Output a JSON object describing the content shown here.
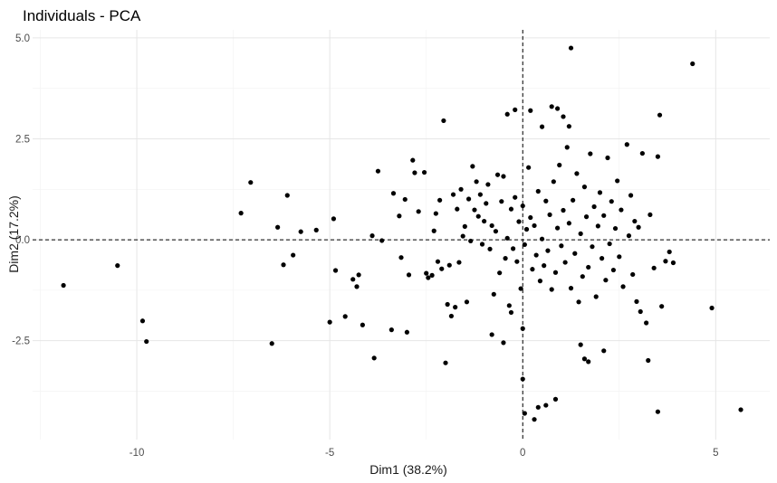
{
  "chart_data": {
    "type": "scatter",
    "title": "Individuals - PCA",
    "xlabel": "Dim1 (38.2%)",
    "ylabel": "Dim2 (17.2%)",
    "xlim": [
      -12.7,
      6.4
    ],
    "ylim": [
      -4.95,
      5.2
    ],
    "x_ticks": [
      -10,
      -5,
      0,
      5
    ],
    "x_tick_labels": [
      "-10",
      "-5",
      "0",
      "5"
    ],
    "y_ticks": [
      -2.5,
      0.0,
      2.5,
      5.0
    ],
    "y_tick_labels": [
      "-2.5",
      "0.0",
      "2.5",
      "5.0"
    ],
    "x_minor_ticks": [
      -12.5,
      -7.5,
      -2.5,
      2.5
    ],
    "y_minor_ticks": [
      -3.75,
      -1.25,
      1.25,
      3.75
    ],
    "grid": true,
    "reference_lines": {
      "x": 0,
      "y": 0,
      "style": "dashed"
    },
    "point_color": "#000000",
    "points": [
      [
        -11.9,
        -1.13
      ],
      [
        -10.5,
        -0.64
      ],
      [
        -9.85,
        -2.01
      ],
      [
        -9.75,
        -2.52
      ],
      [
        -7.3,
        0.66
      ],
      [
        -7.05,
        1.42
      ],
      [
        -6.5,
        -2.57
      ],
      [
        -6.35,
        0.31
      ],
      [
        -6.2,
        -0.62
      ],
      [
        -6.1,
        1.1
      ],
      [
        -5.95,
        -0.38
      ],
      [
        -5.75,
        0.2
      ],
      [
        -5.35,
        0.24
      ],
      [
        -5.0,
        -2.04
      ],
      [
        -4.9,
        0.52
      ],
      [
        -4.85,
        -0.76
      ],
      [
        -4.6,
        -1.9
      ],
      [
        -4.4,
        -0.98
      ],
      [
        -4.3,
        -1.16
      ],
      [
        -4.25,
        -0.87
      ],
      [
        -4.15,
        -2.11
      ],
      [
        -3.9,
        0.1
      ],
      [
        -3.85,
        -2.93
      ],
      [
        -3.75,
        1.7
      ],
      [
        -3.65,
        -0.02
      ],
      [
        -3.4,
        -2.23
      ],
      [
        -3.35,
        1.15
      ],
      [
        -3.2,
        0.59
      ],
      [
        -3.15,
        -0.44
      ],
      [
        -3.05,
        1.0
      ],
      [
        -3.0,
        -2.29
      ],
      [
        -2.95,
        -0.87
      ],
      [
        -2.85,
        1.97
      ],
      [
        -2.8,
        1.66
      ],
      [
        -2.7,
        0.7
      ],
      [
        -2.55,
        1.67
      ],
      [
        -2.5,
        -0.83
      ],
      [
        -2.45,
        -0.94
      ],
      [
        -2.35,
        -0.88
      ],
      [
        -2.3,
        0.22
      ],
      [
        -2.25,
        0.65
      ],
      [
        -2.2,
        -0.54
      ],
      [
        -2.15,
        0.98
      ],
      [
        -2.1,
        -0.72
      ],
      [
        -2.05,
        2.95
      ],
      [
        -2.0,
        -3.05
      ],
      [
        -1.95,
        -1.6
      ],
      [
        -1.9,
        -0.63
      ],
      [
        -1.85,
        -1.89
      ],
      [
        -1.8,
        1.12
      ],
      [
        -1.75,
        -1.67
      ],
      [
        -1.7,
        0.76
      ],
      [
        -1.65,
        -0.56
      ],
      [
        -1.6,
        1.25
      ],
      [
        -1.55,
        0.09
      ],
      [
        -1.5,
        0.33
      ],
      [
        -1.45,
        -1.54
      ],
      [
        -1.4,
        1.01
      ],
      [
        -1.35,
        -0.03
      ],
      [
        -1.3,
        1.82
      ],
      [
        -1.25,
        0.74
      ],
      [
        -1.2,
        1.44
      ],
      [
        -1.15,
        0.58
      ],
      [
        -1.1,
        1.12
      ],
      [
        -1.05,
        -0.11
      ],
      [
        -1.0,
        0.46
      ],
      [
        -0.95,
        0.9
      ],
      [
        -0.9,
        1.37
      ],
      [
        -0.85,
        -0.23
      ],
      [
        -0.8,
        0.35
      ],
      [
        -0.75,
        -1.35
      ],
      [
        -0.7,
        0.21
      ],
      [
        -0.65,
        1.61
      ],
      [
        -0.6,
        -0.82
      ],
      [
        -0.55,
        0.95
      ],
      [
        -0.5,
        1.57
      ],
      [
        -0.45,
        -0.46
      ],
      [
        -0.4,
        0.04
      ],
      [
        -0.35,
        -1.63
      ],
      [
        -0.3,
        0.76
      ],
      [
        -0.25,
        -0.22
      ],
      [
        -0.2,
        1.05
      ],
      [
        -0.15,
        -0.54
      ],
      [
        -0.1,
        0.45
      ],
      [
        -0.05,
        -1.21
      ],
      [
        0.0,
        0.84
      ],
      [
        0.05,
        -0.12
      ],
      [
        0.1,
        0.26
      ],
      [
        0.15,
        1.79
      ],
      [
        0.2,
        0.55
      ],
      [
        0.25,
        -0.73
      ],
      [
        0.3,
        0.35
      ],
      [
        0.35,
        -0.38
      ],
      [
        0.4,
        1.2
      ],
      [
        0.45,
        -1.02
      ],
      [
        0.5,
        0.02
      ],
      [
        0.55,
        -0.64
      ],
      [
        0.6,
        0.96
      ],
      [
        0.65,
        -0.27
      ],
      [
        0.7,
        0.62
      ],
      [
        0.75,
        -1.23
      ],
      [
        0.8,
        1.44
      ],
      [
        0.85,
        -0.81
      ],
      [
        0.9,
        0.29
      ],
      [
        0.95,
        1.85
      ],
      [
        1.0,
        -0.15
      ],
      [
        1.05,
        0.73
      ],
      [
        1.1,
        -0.56
      ],
      [
        1.15,
        2.29
      ],
      [
        1.2,
        0.41
      ],
      [
        1.25,
        -1.2
      ],
      [
        1.3,
        0.98
      ],
      [
        1.35,
        -0.34
      ],
      [
        1.4,
        1.64
      ],
      [
        1.45,
        -1.54
      ],
      [
        1.5,
        0.15
      ],
      [
        1.55,
        -0.91
      ],
      [
        1.6,
        1.31
      ],
      [
        1.65,
        0.57
      ],
      [
        1.7,
        -0.68
      ],
      [
        1.75,
        2.13
      ],
      [
        1.8,
        -0.17
      ],
      [
        1.85,
        0.82
      ],
      [
        1.9,
        -1.41
      ],
      [
        1.95,
        0.34
      ],
      [
        2.0,
        1.17
      ],
      [
        2.05,
        -0.46
      ],
      [
        2.1,
        0.6
      ],
      [
        2.15,
        -1.0
      ],
      [
        2.2,
        2.03
      ],
      [
        2.25,
        -0.1
      ],
      [
        2.3,
        0.95
      ],
      [
        2.35,
        -0.75
      ],
      [
        2.4,
        0.28
      ],
      [
        2.45,
        1.46
      ],
      [
        2.5,
        -0.42
      ],
      [
        2.55,
        0.74
      ],
      [
        2.6,
        -1.16
      ],
      [
        2.7,
        2.36
      ],
      [
        2.75,
        0.1
      ],
      [
        2.8,
        1.1
      ],
      [
        2.85,
        -0.86
      ],
      [
        2.9,
        0.46
      ],
      [
        2.95,
        -1.53
      ],
      [
        3.0,
        0.31
      ],
      [
        3.05,
        -1.78
      ],
      [
        3.1,
        2.14
      ],
      [
        3.2,
        -2.06
      ],
      [
        3.25,
        -2.99
      ],
      [
        3.3,
        0.62
      ],
      [
        3.4,
        -0.7
      ],
      [
        3.5,
        2.06
      ],
      [
        3.55,
        3.09
      ],
      [
        3.6,
        -1.65
      ],
      [
        3.7,
        -0.53
      ],
      [
        3.8,
        -0.3
      ],
      [
        3.9,
        -0.57
      ],
      [
        3.5,
        -4.26
      ],
      [
        4.4,
        4.36
      ],
      [
        4.9,
        -1.69
      ],
      [
        5.65,
        -4.21
      ],
      [
        1.25,
        4.75
      ],
      [
        0.75,
        3.3
      ],
      [
        0.9,
        3.25
      ],
      [
        1.05,
        3.05
      ],
      [
        0.2,
        3.2
      ],
      [
        -0.2,
        3.22
      ],
      [
        -0.4,
        3.11
      ],
      [
        1.2,
        2.81
      ],
      [
        0.5,
        2.8
      ],
      [
        0.0,
        -3.45
      ],
      [
        0.4,
        -4.15
      ],
      [
        0.6,
        -4.1
      ],
      [
        0.85,
        -3.95
      ],
      [
        0.3,
        -4.45
      ],
      [
        0.05,
        -4.3
      ],
      [
        0.0,
        -2.2
      ],
      [
        -0.3,
        -1.8
      ],
      [
        -0.5,
        -2.55
      ],
      [
        -0.8,
        -2.35
      ],
      [
        1.7,
        -3.02
      ],
      [
        1.5,
        -2.6
      ],
      [
        2.1,
        -2.75
      ],
      [
        1.6,
        -2.95
      ]
    ]
  }
}
